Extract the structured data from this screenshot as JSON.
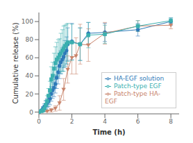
{
  "chart_data": {
    "type": "line",
    "xlabel": "Time (h)",
    "ylabel": "Cumulative release (%)",
    "xlim": [
      0,
      8.5
    ],
    "ylim": [
      -2,
      110
    ],
    "xticks": [
      0,
      2,
      4,
      6,
      8
    ],
    "yticks": [
      0,
      20,
      40,
      60,
      80,
      100
    ],
    "legend": "lower right",
    "series": [
      {
        "name": "HA-EGF solution",
        "color": "#2e7ab8",
        "marker": "circle",
        "x": [
          0,
          0.17,
          0.25,
          0.33,
          0.42,
          0.5,
          0.58,
          0.67,
          0.75,
          0.83,
          0.92,
          1.0,
          1.08,
          1.17,
          1.25,
          1.33,
          1.42,
          1.5,
          1.58,
          1.67,
          1.75,
          2.0,
          2.5,
          3.0,
          4.0,
          6.0,
          8.0
        ],
        "values": [
          0,
          2,
          4,
          6,
          8,
          10,
          12,
          15,
          20,
          24,
          27,
          31,
          38,
          44,
          51,
          55,
          58,
          61,
          65,
          68,
          75,
          78,
          75,
          87,
          88,
          91,
          100
        ],
        "yerr": [
          0,
          1,
          2,
          3,
          4,
          5,
          6,
          7,
          8,
          9,
          10,
          10,
          12,
          13,
          14,
          13,
          13,
          12,
          14,
          15,
          18,
          20,
          18,
          12,
          10,
          7,
          4
        ]
      },
      {
        "name": "Patch-type HA-EGF",
        "color": "#c8836a",
        "marker": "triangle-down",
        "x": [
          0,
          0.5,
          0.75,
          1.0,
          1.25,
          1.5,
          1.75,
          2.0,
          2.25,
          2.5,
          3.0,
          4.0,
          6.0,
          8.0
        ],
        "values": [
          0,
          1,
          2,
          4,
          10,
          25,
          47,
          60,
          62,
          75,
          74,
          87,
          95,
          96
        ],
        "yerr": [
          0,
          1,
          2,
          3,
          8,
          12,
          15,
          18,
          20,
          22,
          18,
          12,
          6,
          4
        ]
      },
      {
        "name": "Patch-type EGF",
        "color": "#3aafaf",
        "marker": "square",
        "x": [
          0,
          0.17,
          0.25,
          0.33,
          0.42,
          0.5,
          0.58,
          0.67,
          0.75,
          0.83,
          0.92,
          1.0,
          1.08,
          1.17,
          1.25,
          1.33,
          1.42,
          1.5,
          1.58,
          1.67,
          1.75,
          2.0,
          2.5,
          3.0,
          4.0,
          6.0,
          8.0
        ],
        "values": [
          0,
          1,
          2,
          4,
          8,
          12,
          18,
          24,
          36,
          40,
          48,
          54,
          58,
          60,
          63,
          65,
          68,
          70,
          73,
          75,
          77,
          77,
          75,
          85,
          86,
          95,
          101
        ],
        "yerr": [
          0,
          1,
          2,
          3,
          5,
          6,
          8,
          10,
          14,
          15,
          17,
          18,
          19,
          20,
          18,
          22,
          23,
          25,
          23,
          22,
          21,
          20,
          18,
          14,
          10,
          6,
          3
        ]
      }
    ]
  }
}
